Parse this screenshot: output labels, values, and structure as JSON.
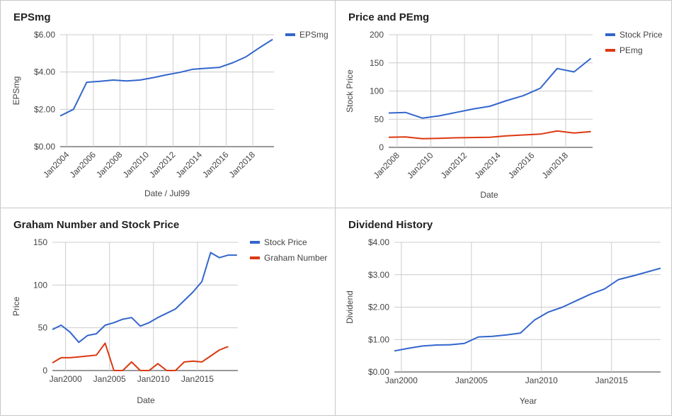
{
  "colors": {
    "blue": "#3366cc",
    "red": "#dc3912",
    "grid": "#cccccc",
    "axis": "#333333",
    "text": "#444444"
  },
  "chart_data": [
    {
      "type": "line",
      "title": "EPSmg",
      "xlabel": "Date / Jul99",
      "ylabel": "EPSmg",
      "x_ticks": [
        "Jan2004",
        "Jan2006",
        "Jan2008",
        "Jan2010",
        "Jan2012",
        "Jan2014",
        "Jan2016",
        "Jan2018"
      ],
      "x_tick_values": [
        2004,
        2006,
        2008,
        2010,
        2012,
        2014,
        2016,
        2018
      ],
      "xlim": [
        2003.5,
        2019.6
      ],
      "y_ticks": [
        "$0.00",
        "$2.00",
        "$4.00",
        "$6.00"
      ],
      "y_tick_values": [
        0,
        2,
        4,
        6
      ],
      "ylim": [
        0,
        6
      ],
      "legend": "right",
      "grid": true,
      "series": [
        {
          "name": "EPSmg",
          "color": "#3366cc",
          "x": [
            2003.5,
            2004.5,
            2005.5,
            2006.5,
            2007.5,
            2008.5,
            2009.5,
            2010.5,
            2011.5,
            2012.5,
            2013.5,
            2014.5,
            2015.5,
            2016.5,
            2017.5,
            2018.5,
            2019.5
          ],
          "y": [
            1.65,
            2.0,
            3.45,
            3.5,
            3.57,
            3.52,
            3.57,
            3.7,
            3.85,
            3.98,
            4.15,
            4.2,
            4.25,
            4.5,
            4.82,
            5.3,
            5.75
          ]
        }
      ]
    },
    {
      "type": "line",
      "title": "Price and PEmg",
      "xlabel": "Date",
      "ylabel": "Stock Price",
      "x_ticks": [
        "Jan2008",
        "Jan2010",
        "Jan2012",
        "Jan2014",
        "Jan2016",
        "Jan2018"
      ],
      "x_tick_values": [
        2008,
        2010,
        2012,
        2014,
        2016,
        2018
      ],
      "xlim": [
        2007.5,
        2019.6
      ],
      "y_ticks": [
        "0",
        "50",
        "100",
        "150",
        "200"
      ],
      "y_tick_values": [
        0,
        50,
        100,
        150,
        200
      ],
      "ylim": [
        0,
        200
      ],
      "legend": "right",
      "grid": true,
      "series": [
        {
          "name": "Stock Price",
          "color": "#3366cc",
          "x": [
            2007.5,
            2008.5,
            2009.5,
            2010.5,
            2011.5,
            2012.5,
            2013.5,
            2014.5,
            2015.5,
            2016.5,
            2017.5,
            2018.5,
            2019.5
          ],
          "y": [
            61,
            62,
            52,
            56,
            62,
            68,
            73,
            83,
            92,
            105,
            140,
            134,
            158
          ]
        },
        {
          "name": "PEmg",
          "color": "#dc3912",
          "x": [
            2007.5,
            2008.5,
            2009.5,
            2010.5,
            2011.5,
            2012.5,
            2013.5,
            2014.5,
            2015.5,
            2016.5,
            2017.5,
            2018.5,
            2019.5
          ],
          "y": [
            18,
            18.5,
            15.5,
            16,
            17,
            17.5,
            18,
            20.5,
            22,
            23.5,
            29,
            25.5,
            28
          ]
        }
      ]
    },
    {
      "type": "line",
      "title": "Graham Number and Stock Price",
      "xlabel": "Date",
      "ylabel": "Price",
      "x_ticks": [
        "Jan2000",
        "Jan2005",
        "Jan2010",
        "Jan2015"
      ],
      "x_tick_values": [
        2000,
        2005,
        2010,
        2015
      ],
      "xlim": [
        1998.5,
        2019.6
      ],
      "y_ticks": [
        "0",
        "50",
        "100",
        "150"
      ],
      "y_tick_values": [
        0,
        50,
        100,
        150
      ],
      "ylim": [
        0,
        150
      ],
      "legend": "right",
      "grid": true,
      "series": [
        {
          "name": "Stock Price",
          "color": "#3366cc",
          "x": [
            1998.5,
            1999.5,
            2000.5,
            2001.5,
            2002.5,
            2003.5,
            2004.5,
            2005.5,
            2006.5,
            2007.5,
            2008.5,
            2009.5,
            2010.5,
            2011.5,
            2012.5,
            2013.5,
            2014.5,
            2015.5,
            2016.5,
            2017.5,
            2018.5,
            2019.5
          ],
          "y": [
            48,
            53,
            45,
            33,
            41,
            43,
            53,
            56,
            60,
            62,
            52,
            56,
            62,
            67,
            72,
            82,
            92,
            104,
            138,
            132,
            135,
            135
          ]
        },
        {
          "name": "Graham Number",
          "color": "#dc3912",
          "x": [
            1998.5,
            1999.5,
            2000.5,
            2001.5,
            2002.5,
            2003.5,
            2004.5,
            2005.5,
            2006.5,
            2007.5,
            2008.5,
            2009.5,
            2010.5,
            2011.5,
            2012.5,
            2013.5,
            2014.5,
            2015.5,
            2016.5,
            2017.5,
            2018.5
          ],
          "y": [
            9,
            15,
            15,
            16,
            17,
            18,
            32,
            0,
            0,
            10,
            0,
            0,
            8,
            0,
            0,
            10,
            11,
            10,
            17,
            24,
            28
          ]
        }
      ]
    },
    {
      "type": "line",
      "title": "Dividend History",
      "xlabel": "Year",
      "ylabel": "Dividend",
      "x_ticks": [
        "Jan2000",
        "Jan2005",
        "Jan2010",
        "Jan2015"
      ],
      "x_tick_values": [
        2000,
        2005,
        2010,
        2015
      ],
      "xlim": [
        1999.5,
        2018.5
      ],
      "y_ticks": [
        "$0.00",
        "$1.00",
        "$2.00",
        "$3.00",
        "$4.00"
      ],
      "y_tick_values": [
        0,
        1,
        2,
        3,
        4
      ],
      "ylim": [
        0,
        4
      ],
      "legend": "none",
      "grid": true,
      "series": [
        {
          "name": "",
          "color": "#3366cc",
          "x": [
            1999.5,
            2000.5,
            2001.5,
            2002.5,
            2003.5,
            2004.5,
            2005.5,
            2006.5,
            2007.5,
            2008.5,
            2009.5,
            2010.5,
            2011.5,
            2012.5,
            2013.5,
            2014.5,
            2015.5,
            2016.5,
            2017.5,
            2018.5
          ],
          "y": [
            0.65,
            0.73,
            0.8,
            0.83,
            0.84,
            0.88,
            1.08,
            1.1,
            1.14,
            1.2,
            1.6,
            1.85,
            2.0,
            2.2,
            2.4,
            2.56,
            2.85,
            2.96,
            3.08,
            3.2
          ]
        }
      ]
    }
  ]
}
